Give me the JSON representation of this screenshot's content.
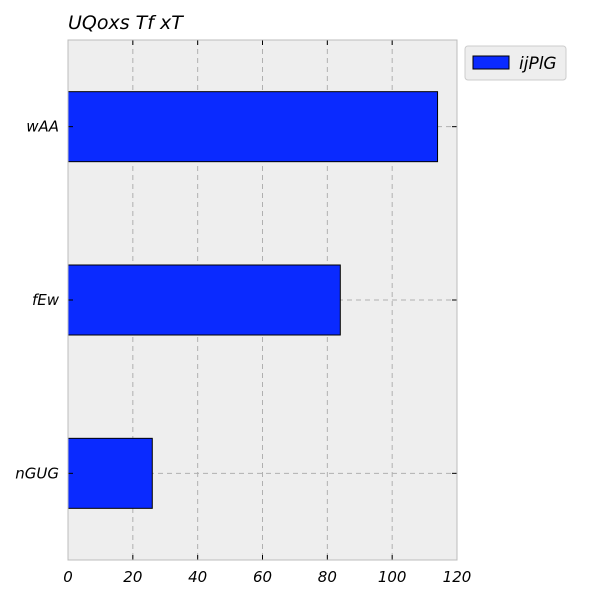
{
  "chart_data": {
    "type": "bar",
    "orientation": "horizontal",
    "title": "UQoxs Tf xT",
    "xlabel": "",
    "ylabel": "",
    "categories": [
      "wAA",
      "fEw",
      "nGUG"
    ],
    "series": [
      {
        "name": "ijPlG",
        "values": [
          114,
          84,
          26
        ]
      }
    ],
    "xlim": [
      0,
      120
    ],
    "xticks": [
      0,
      20,
      40,
      60,
      80,
      100,
      120
    ],
    "grid": true,
    "legend_position": "top-right outside",
    "colors": {
      "bar": "#0a2aff",
      "plot_background": "#eeeeee",
      "grid": "#b0b0b0",
      "axes": "#bcbcbc",
      "text": "#000000"
    }
  }
}
